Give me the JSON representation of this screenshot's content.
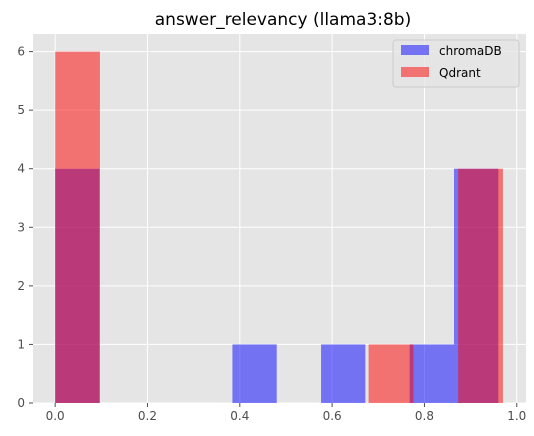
{
  "chart_data": {
    "type": "bar",
    "title": "answer_relevancy (llama3:8b)",
    "xlabel": "",
    "ylabel": "",
    "xlim": [
      -0.048,
      1.02
    ],
    "ylim": [
      0,
      6.3
    ],
    "xticks": [
      0.0,
      0.2,
      0.4,
      0.6,
      0.8,
      1.0
    ],
    "xtick_labels": [
      "0.0",
      "0.2",
      "0.4",
      "0.6",
      "0.8",
      "1.0"
    ],
    "yticks": [
      0,
      1,
      2,
      3,
      4,
      5,
      6
    ],
    "ytick_labels": [
      "0",
      "1",
      "2",
      "3",
      "4",
      "5",
      "6"
    ],
    "grid": true,
    "legend_position": "top-right",
    "series": [
      {
        "name": "chromaDB",
        "color": "#0000ff",
        "opacity": 0.5,
        "bins": [
          {
            "x0": 0.0,
            "x1": 0.096,
            "count": 4
          },
          {
            "x0": 0.096,
            "x1": 0.192,
            "count": 0
          },
          {
            "x0": 0.192,
            "x1": 0.288,
            "count": 0
          },
          {
            "x0": 0.288,
            "x1": 0.384,
            "count": 0
          },
          {
            "x0": 0.384,
            "x1": 0.48,
            "count": 1
          },
          {
            "x0": 0.48,
            "x1": 0.576,
            "count": 0
          },
          {
            "x0": 0.576,
            "x1": 0.672,
            "count": 1
          },
          {
            "x0": 0.672,
            "x1": 0.768,
            "count": 0
          },
          {
            "x0": 0.768,
            "x1": 0.864,
            "count": 1
          },
          {
            "x0": 0.864,
            "x1": 0.96,
            "count": 4
          }
        ]
      },
      {
        "name": "Qdrant",
        "color": "#ff0000",
        "opacity": 0.5,
        "bins": [
          {
            "x0": 0.0,
            "x1": 0.097,
            "count": 6
          },
          {
            "x0": 0.097,
            "x1": 0.194,
            "count": 0
          },
          {
            "x0": 0.194,
            "x1": 0.291,
            "count": 0
          },
          {
            "x0": 0.291,
            "x1": 0.388,
            "count": 0
          },
          {
            "x0": 0.388,
            "x1": 0.485,
            "count": 0
          },
          {
            "x0": 0.485,
            "x1": 0.582,
            "count": 0
          },
          {
            "x0": 0.582,
            "x1": 0.679,
            "count": 0
          },
          {
            "x0": 0.679,
            "x1": 0.776,
            "count": 1
          },
          {
            "x0": 0.776,
            "x1": 0.873,
            "count": 0
          },
          {
            "x0": 0.873,
            "x1": 0.97,
            "count": 4
          }
        ]
      }
    ]
  }
}
